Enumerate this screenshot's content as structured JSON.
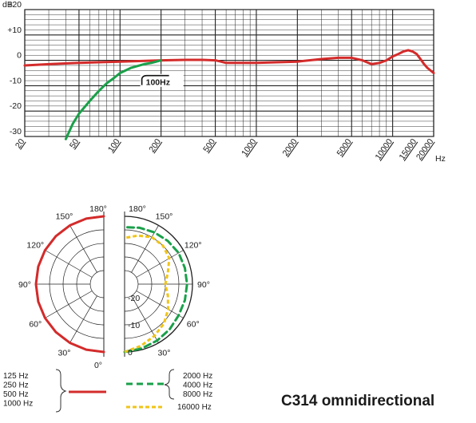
{
  "chart_data": [
    {
      "type": "line",
      "title": "",
      "ylabel": "dB",
      "xunit": "Hz",
      "x_ticks": [
        20,
        50,
        100,
        200,
        500,
        1000,
        2000,
        5000,
        10000,
        15000,
        20000
      ],
      "x_tick_labels": [
        "20",
        "50",
        "100",
        "200",
        "500",
        "1000",
        "2000",
        "5000",
        "10000",
        "15000",
        "20000"
      ],
      "xlim": [
        20,
        20000
      ],
      "xscale": "log",
      "ylim": [
        -30,
        20
      ],
      "y_ticks": [
        20,
        10,
        0,
        -10,
        -20,
        -30
      ],
      "y_tick_labels": [
        "+20",
        "+10",
        "0",
        "-10",
        "-20",
        "-30"
      ],
      "grid": true,
      "series": [
        {
          "name": "",
          "color": "#d42b2b",
          "x": [
            20,
            30,
            50,
            100,
            200,
            300,
            400,
            500,
            550,
            600,
            1000,
            2000,
            3000,
            4000,
            5000,
            6000,
            7000,
            8000,
            9000,
            10000,
            11000,
            12000,
            13000,
            14000,
            15000,
            16000,
            17000,
            18000,
            20000
          ],
          "y": [
            -2,
            -1.5,
            -1,
            -0.5,
            0,
            0.2,
            0.2,
            0,
            -0.5,
            -1,
            -1,
            -0.5,
            0.5,
            1,
            1,
            0,
            -1.5,
            -1,
            0,
            1.5,
            2.5,
            3.5,
            4,
            3.5,
            2.5,
            0.5,
            -1.5,
            -3,
            -5
          ]
        },
        {
          "name": "",
          "color": "#1aa04a",
          "x": [
            40,
            45,
            50,
            60,
            70,
            80,
            90,
            100,
            120,
            150,
            170,
            200
          ],
          "y": [
            -31,
            -25,
            -21,
            -16,
            -12,
            -9,
            -7,
            -5,
            -3,
            -1.5,
            -1,
            0
          ]
        }
      ],
      "annotation": "100Hz"
    },
    {
      "type": "polar",
      "angle_ticks": [
        "0°",
        "30°",
        "60°",
        "90°",
        "120°",
        "150°",
        "180°"
      ],
      "ring_labels": [
        "-20",
        "-10",
        "0"
      ],
      "legend": [
        {
          "labels": [
            "125 Hz",
            "250 Hz",
            "500 Hz",
            "1000 Hz"
          ],
          "color": "#d42b2b",
          "style": "solid"
        },
        {
          "labels": [
            "2000 Hz",
            "4000 Hz",
            "8000 Hz"
          ],
          "color": "#1aa04a",
          "style": "dashed"
        },
        {
          "labels": [
            "16000 Hz"
          ],
          "color": "#f0c419",
          "style": "dotted"
        }
      ],
      "series": [
        {
          "name": "125 Hz / 250 Hz / 500 Hz / 1000 Hz",
          "color": "#d42b2b",
          "angles": [
            0,
            15,
            30,
            45,
            60,
            75,
            90,
            105,
            120,
            135,
            150,
            165,
            180
          ],
          "db": [
            0,
            0,
            0,
            0,
            0,
            0,
            0,
            0,
            0,
            0,
            0,
            0,
            0
          ]
        },
        {
          "name": "2000 Hz / 4000 Hz / 8000 Hz",
          "color": "#1aa04a",
          "angles": [
            0,
            15,
            30,
            45,
            60,
            75,
            90,
            105,
            120,
            135,
            150,
            165,
            180
          ],
          "db": [
            0,
            -0.5,
            -1,
            -1.5,
            -2,
            -2,
            -2,
            -2,
            -2,
            -2.5,
            -3,
            -3.5,
            -4
          ]
        },
        {
          "name": "16000 Hz",
          "color": "#f0c419",
          "angles": [
            0,
            15,
            30,
            45,
            60,
            75,
            90,
            105,
            120,
            135,
            150,
            165,
            180
          ],
          "db": [
            0,
            -1.5,
            -3,
            -4.5,
            -6.5,
            -8.5,
            -10,
            -8.5,
            -6,
            -5,
            -5,
            -6.5,
            -8
          ]
        }
      ]
    }
  ],
  "caption": "C314 omnidirectional"
}
